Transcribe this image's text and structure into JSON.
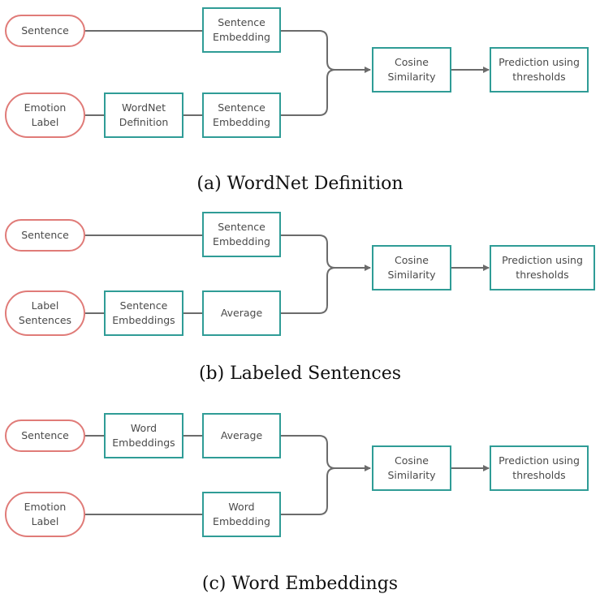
{
  "panel_a": {
    "input_top": "Sentence",
    "input_bottom": "Emotion\nLabel",
    "mid_bottom": "WordNet\nDefinition",
    "embed_top": "Sentence\nEmbedding",
    "embed_bottom": "Sentence\nEmbedding",
    "similarity": "Cosine\nSimilarity",
    "prediction": "Prediction using\nthresholds",
    "caption": "(a) WordNet Definition"
  },
  "panel_b": {
    "input_top": "Sentence",
    "input_bottom": "Label\nSentences",
    "mid_bottom": "Sentence\nEmbeddings",
    "embed_top": "Sentence\nEmbedding",
    "embed_bottom": "Average",
    "similarity": "Cosine\nSimilarity",
    "prediction": "Prediction using\nthresholds",
    "caption": "(b) Labeled Sentences"
  },
  "panel_c": {
    "input_top": "Sentence",
    "mid_top": "Word\nEmbeddings",
    "embed_top": "Average",
    "input_bottom": "Emotion\nLabel",
    "embed_bottom": "Word\nEmbedding",
    "similarity": "Cosine\nSimilarity",
    "prediction": "Prediction using\nthresholds",
    "caption": "(c) Word Embeddings"
  }
}
